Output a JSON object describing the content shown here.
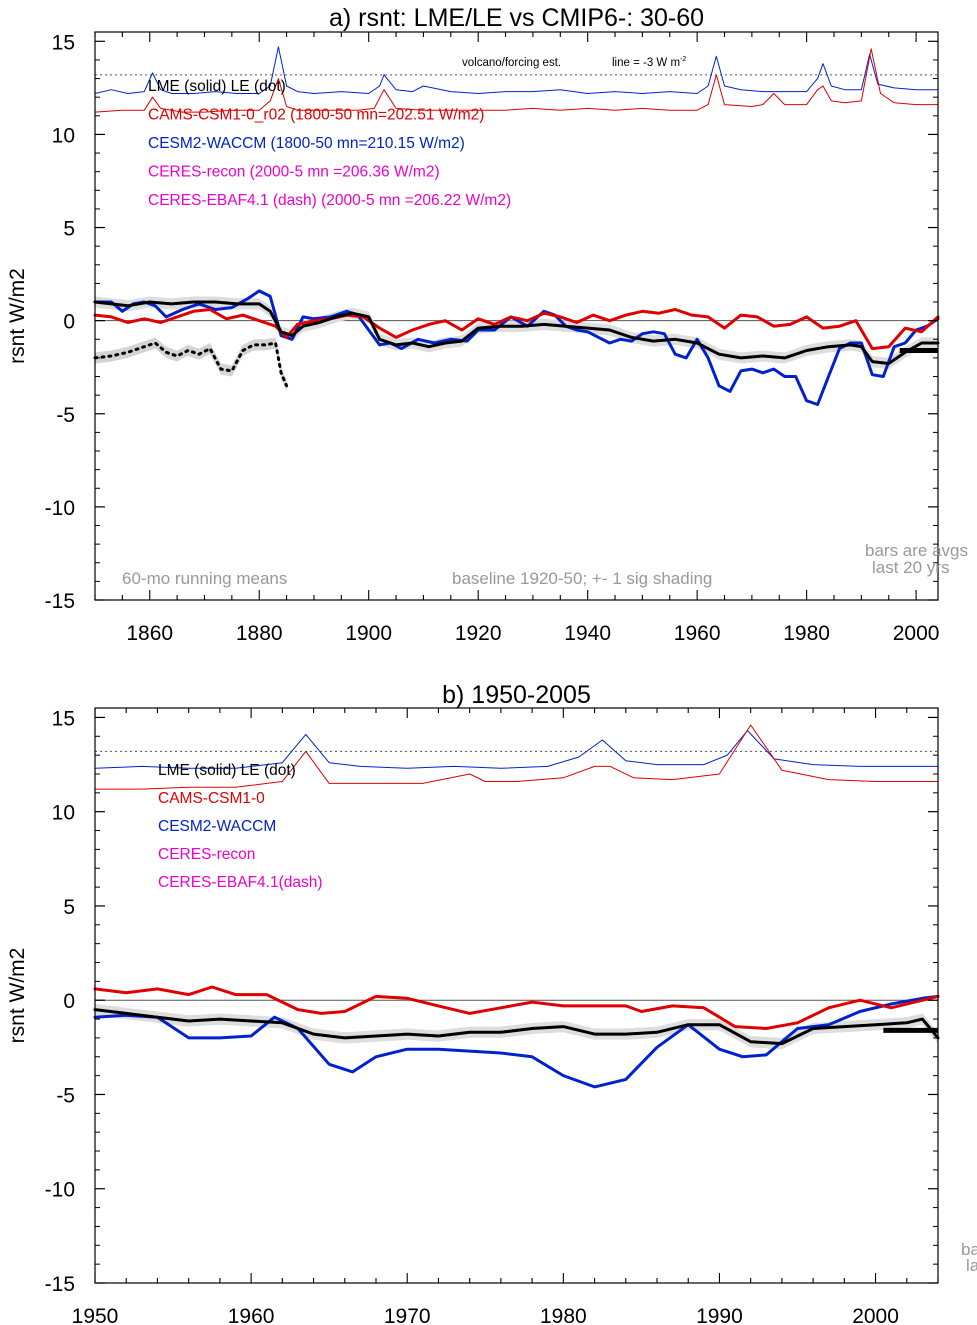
{
  "chart_data": [
    {
      "type": "line",
      "title": "a) rsnt: LME/LE vs CMIP6-: 30-60",
      "ylabel": "rsnt W/m2",
      "xlim": [
        1850,
        2004
      ],
      "ylim": [
        -15,
        15.5
      ],
      "xticks": [
        "1860",
        "1880",
        "1900",
        "1920",
        "1940",
        "1960",
        "1980",
        "2000"
      ],
      "yticks": [
        "15",
        "10",
        "5",
        "0",
        "-5",
        "-10",
        "-15"
      ],
      "grid": false,
      "legend": [
        {
          "text": "LME (solid)   LE (dot)",
          "color": "#000000"
        },
        {
          "text": "CAMS-CSM1-0_r02 (1800-50 mn=202.51 W/m2)",
          "color": "#e00000"
        },
        {
          "text": "CESM2-WACCM (1800-50 mn=210.15 W/m2)",
          "color": "#0022cc"
        },
        {
          "text": "CERES-recon (2000-5 mn =206.36 W/m2)",
          "color": "#ee00cc"
        },
        {
          "text": "CERES-EBAF4.1 (dash) (2000-5 mn =206.22 W/m2)",
          "color": "#ee00cc"
        }
      ],
      "volcano_note": "volcano/forcing est.",
      "line_note": "line = -3 W m",
      "line_note_sup": "-2",
      "note_left": "60-mo running means",
      "note_center": "baseline 1920-50; +- 1 sig shading",
      "note_right_1": "bars are avgs",
      "note_right_2": "last 20 yrs",
      "series": [
        {
          "name": "CESM2-WACCM",
          "color": "#0022cc",
          "x": [
            1850,
            1853,
            1855,
            1857,
            1859,
            1861,
            1863,
            1866,
            1869,
            1872,
            1875,
            1878,
            1880,
            1882,
            1884,
            1886,
            1888,
            1890,
            1893,
            1896,
            1898,
            1900,
            1902,
            1904,
            1906,
            1909,
            1912,
            1915,
            1918,
            1920,
            1923,
            1926,
            1929,
            1932,
            1934,
            1936,
            1938,
            1940,
            1942,
            1944,
            1946,
            1948,
            1950,
            1952,
            1954,
            1956,
            1958,
            1960,
            1962,
            1964,
            1966,
            1968,
            1970,
            1972,
            1974,
            1976,
            1978,
            1980,
            1982,
            1984,
            1986,
            1988,
            1990,
            1992,
            1994,
            1996,
            1998,
            2000,
            2002,
            2004
          ],
          "y": [
            1.0,
            1.0,
            0.5,
            0.9,
            1.0,
            0.8,
            0.2,
            0.6,
            0.9,
            0.6,
            0.7,
            1.2,
            1.6,
            1.3,
            -0.8,
            -1.0,
            0.2,
            0.1,
            0.2,
            0.5,
            0.3,
            -0.5,
            -1.3,
            -1.2,
            -1.5,
            -1.0,
            -1.2,
            -1.0,
            -1.1,
            -0.5,
            -0.5,
            0.2,
            -0.3,
            0.5,
            0.3,
            -0.3,
            -0.5,
            -0.6,
            -0.9,
            -1.2,
            -1.0,
            -1.1,
            -0.7,
            -0.6,
            -0.7,
            -1.8,
            -2.0,
            -1.0,
            -2.0,
            -3.5,
            -3.8,
            -2.7,
            -2.6,
            -2.8,
            -2.6,
            -3.0,
            -3.0,
            -4.3,
            -4.5,
            -3.0,
            -1.5,
            -1.2,
            -1.2,
            -2.9,
            -3.0,
            -1.4,
            -1.2,
            -0.5,
            -0.3,
            0.1
          ]
        },
        {
          "name": "CAMS-CSM1-0",
          "color": "#e00000",
          "x": [
            1850,
            1853,
            1856,
            1859,
            1862,
            1865,
            1868,
            1871,
            1874,
            1877,
            1880,
            1883,
            1885,
            1887,
            1890,
            1893,
            1896,
            1899,
            1902,
            1905,
            1908,
            1911,
            1914,
            1917,
            1920,
            1923,
            1926,
            1929,
            1932,
            1935,
            1938,
            1941,
            1944,
            1947,
            1950,
            1953,
            1956,
            1959,
            1962,
            1965,
            1968,
            1971,
            1974,
            1977,
            1980,
            1983,
            1986,
            1989,
            1992,
            1995,
            1998,
            2001,
            2004
          ],
          "y": [
            0.3,
            0.2,
            -0.1,
            0.1,
            -0.1,
            0.2,
            0.5,
            0.6,
            0.1,
            0.3,
            0.0,
            -0.3,
            -0.9,
            -0.2,
            0.0,
            0.1,
            0.3,
            0.2,
            -0.4,
            -0.9,
            -0.5,
            -0.2,
            0.0,
            -0.5,
            0.1,
            -0.2,
            0.2,
            0.0,
            0.4,
            0.2,
            -0.1,
            0.3,
            0.0,
            0.3,
            0.5,
            0.4,
            0.6,
            0.3,
            0.2,
            -0.4,
            0.3,
            0.2,
            -0.3,
            -0.2,
            0.2,
            -0.4,
            -0.3,
            0.0,
            -1.5,
            -1.4,
            -0.4,
            -0.6,
            0.2
          ]
        },
        {
          "name": "LME",
          "color": "#000000",
          "x": [
            1850,
            1853,
            1856,
            1860,
            1864,
            1868,
            1872,
            1876,
            1880,
            1882,
            1884,
            1886,
            1888,
            1891,
            1894,
            1897,
            1900,
            1902,
            1905,
            1908,
            1911,
            1914,
            1917,
            1920,
            1924,
            1928,
            1932,
            1936,
            1940,
            1944,
            1948,
            1952,
            1956,
            1960,
            1964,
            1968,
            1972,
            1976,
            1980,
            1984,
            1988,
            1990,
            1992,
            1995,
            1998,
            2001,
            2004
          ],
          "y": [
            1.0,
            0.9,
            0.8,
            1.0,
            0.9,
            1.0,
            1.0,
            0.9,
            0.9,
            0.5,
            -0.6,
            -0.8,
            -0.3,
            -0.1,
            0.2,
            0.4,
            0.2,
            -1.0,
            -1.3,
            -1.2,
            -1.4,
            -1.2,
            -1.1,
            -0.4,
            -0.3,
            -0.3,
            -0.2,
            -0.3,
            -0.4,
            -0.5,
            -0.9,
            -1.1,
            -1.0,
            -1.2,
            -1.8,
            -2.0,
            -1.9,
            -2.0,
            -1.6,
            -1.4,
            -1.3,
            -1.4,
            -2.2,
            -2.3,
            -1.7,
            -1.2,
            -1.2
          ]
        },
        {
          "name": "LE",
          "color": "#000000",
          "dash": true,
          "x": [
            1850,
            1853,
            1856,
            1859,
            1861,
            1863,
            1865,
            1867,
            1869,
            1871,
            1873,
            1875,
            1877,
            1879,
            1881,
            1883,
            1884,
            1885
          ],
          "y": [
            -2.0,
            -1.9,
            -1.7,
            -1.4,
            -1.2,
            -1.7,
            -1.9,
            -1.6,
            -1.8,
            -1.5,
            -2.6,
            -2.7,
            -1.6,
            -1.3,
            -1.3,
            -1.2,
            -2.8,
            -3.5
          ]
        },
        {
          "name": "CESM2-WACCM forcing",
          "color": "#0022cc",
          "thin": true,
          "x": [
            1850,
            1853,
            1856,
            1859,
            1860.5,
            1862,
            1864,
            1868,
            1872,
            1876,
            1880,
            1882,
            1883.5,
            1885,
            1887,
            1890,
            1895,
            1900,
            1902,
            1902.8,
            1905,
            1908,
            1910,
            1915,
            1920,
            1925,
            1930,
            1935,
            1940,
            1945,
            1950,
            1955,
            1960,
            1962,
            1963.5,
            1965,
            1968,
            1972,
            1976,
            1980,
            1982,
            1983,
            1984.5,
            1987,
            1990,
            1991.5,
            1993,
            1996,
            2000,
            2004
          ],
          "y": [
            12.2,
            12.4,
            12.2,
            12.3,
            13.3,
            12.4,
            12.2,
            12.2,
            12.3,
            12.2,
            12.2,
            12.6,
            14.7,
            12.6,
            12.3,
            12.2,
            12.3,
            12.2,
            12.6,
            13.2,
            12.4,
            12.3,
            12.6,
            12.3,
            12.2,
            12.3,
            12.3,
            12.4,
            12.2,
            12.3,
            12.2,
            12.3,
            12.2,
            12.6,
            14.2,
            12.6,
            12.4,
            12.3,
            12.3,
            12.3,
            13.0,
            13.8,
            12.6,
            12.4,
            12.4,
            14.3,
            12.7,
            12.5,
            12.4,
            12.4
          ]
        },
        {
          "name": "CAMS-CSM1-0 forcing",
          "color": "#e00000",
          "thin": true,
          "x": [
            1850,
            1855,
            1859,
            1860.5,
            1862,
            1866,
            1870,
            1875,
            1880,
            1882,
            1883.5,
            1885,
            1887,
            1892,
            1898,
            1901,
            1902.8,
            1905,
            1910,
            1915,
            1920,
            1925,
            1930,
            1935,
            1940,
            1945,
            1950,
            1955,
            1960,
            1962,
            1963.5,
            1965,
            1970,
            1972,
            1974,
            1976,
            1980,
            1982,
            1983,
            1984.5,
            1987,
            1990,
            1991.8,
            1993.5,
            1996,
            2000,
            2004
          ],
          "y": [
            11.2,
            11.3,
            11.3,
            12.0,
            11.4,
            11.2,
            11.2,
            11.3,
            11.3,
            11.8,
            13.0,
            11.5,
            11.3,
            11.3,
            11.3,
            11.4,
            12.4,
            11.4,
            11.3,
            11.3,
            11.3,
            11.3,
            11.4,
            11.3,
            11.4,
            11.3,
            11.4,
            11.3,
            11.3,
            11.6,
            13.2,
            11.6,
            11.5,
            11.6,
            12.2,
            11.6,
            11.6,
            12.4,
            12.6,
            11.8,
            11.7,
            11.8,
            14.6,
            12.2,
            11.7,
            11.6,
            11.6
          ]
        }
      ]
    },
    {
      "type": "line",
      "title": "b) 1950-2005",
      "ylabel": "rsnt W/m2",
      "xlim": [
        1950,
        2004
      ],
      "ylim": [
        -15,
        15.5
      ],
      "xticks": [
        "1950",
        "1960",
        "1970",
        "1980",
        "1990",
        "2000"
      ],
      "yticks": [
        "15",
        "10",
        "5",
        "0",
        "-5",
        "-10",
        "-15"
      ],
      "grid": false,
      "legend": [
        {
          "text": "LME (solid)      LE (dot)",
          "color": "#000000"
        },
        {
          "text": "CAMS-CSM1-0",
          "color": "#e00000"
        },
        {
          "text": "CESM2-WACCM",
          "color": "#0022cc"
        },
        {
          "text": "CERES-recon",
          "color": "#ee00cc"
        },
        {
          "text": "CERES-EBAF4.1(dash)",
          "color": "#ee00cc"
        }
      ],
      "note_right_1": "ba",
      "note_right_2": "la",
      "series": [
        {
          "name": "CESM2-WACCM",
          "color": "#0022cc",
          "x": [
            1950,
            1952,
            1954,
            1956,
            1958,
            1960,
            1961.5,
            1963,
            1965,
            1966.5,
            1968,
            1970,
            1972,
            1974,
            1976,
            1978,
            1980,
            1982,
            1984,
            1986,
            1988,
            1990,
            1991.5,
            1993,
            1995,
            1997,
            1999,
            2001,
            2003,
            2004
          ],
          "y": [
            -0.9,
            -0.8,
            -0.9,
            -2.0,
            -2.0,
            -1.9,
            -0.9,
            -1.5,
            -3.4,
            -3.8,
            -3.0,
            -2.6,
            -2.6,
            -2.7,
            -2.8,
            -3.0,
            -4.0,
            -4.6,
            -4.2,
            -2.5,
            -1.3,
            -2.6,
            -3.0,
            -2.9,
            -1.5,
            -1.3,
            -0.6,
            -0.2,
            0.1,
            0.2
          ]
        },
        {
          "name": "CAMS-CSM1-0",
          "color": "#e00000",
          "x": [
            1950,
            1952,
            1954,
            1956,
            1957.5,
            1959,
            1961,
            1963,
            1964.5,
            1966,
            1968,
            1970,
            1972,
            1974,
            1976,
            1978,
            1980,
            1982,
            1984,
            1985,
            1987,
            1989,
            1991,
            1993,
            1995,
            1997,
            1999,
            2001,
            2004
          ],
          "y": [
            0.6,
            0.4,
            0.6,
            0.3,
            0.7,
            0.3,
            0.3,
            -0.5,
            -0.7,
            -0.6,
            0.2,
            0.1,
            -0.3,
            -0.7,
            -0.4,
            -0.1,
            -0.3,
            -0.3,
            -0.3,
            -0.6,
            -0.3,
            -0.4,
            -1.4,
            -1.5,
            -1.2,
            -0.4,
            0.0,
            -0.4,
            0.2
          ]
        },
        {
          "name": "LME",
          "color": "#000000",
          "x": [
            1950,
            1952,
            1954,
            1956,
            1958,
            1960,
            1962,
            1964,
            1966,
            1968,
            1970,
            1972,
            1974,
            1976,
            1978,
            1980,
            1982,
            1984,
            1986,
            1988,
            1990,
            1992,
            1994,
            1996,
            1998,
            2000,
            2002,
            2003,
            2004
          ],
          "y": [
            -0.5,
            -0.7,
            -0.9,
            -1.1,
            -1.0,
            -1.1,
            -1.2,
            -1.8,
            -2.0,
            -1.9,
            -1.8,
            -1.9,
            -1.7,
            -1.7,
            -1.5,
            -1.4,
            -1.8,
            -1.8,
            -1.7,
            -1.3,
            -1.3,
            -2.2,
            -2.3,
            -1.5,
            -1.4,
            -1.3,
            -1.2,
            -1.0,
            -2.0
          ]
        },
        {
          "name": "CESM2-WACCM forcing",
          "color": "#0022cc",
          "thin": true,
          "x": [
            1950,
            1953,
            1956,
            1959,
            1962,
            1963.5,
            1965,
            1967,
            1970,
            1973,
            1976,
            1979,
            1981,
            1982.5,
            1984,
            1986,
            1989,
            1990.5,
            1991.8,
            1993.5,
            1996,
            1999,
            2002,
            2004
          ],
          "y": [
            12.3,
            12.4,
            12.3,
            12.3,
            12.6,
            14.1,
            12.6,
            12.4,
            12.3,
            12.4,
            12.3,
            12.4,
            12.9,
            13.8,
            12.7,
            12.5,
            12.5,
            13.0,
            14.3,
            12.8,
            12.5,
            12.4,
            12.4,
            12.4
          ]
        },
        {
          "name": "CAMS-CSM1-0 forcing",
          "color": "#e00000",
          "thin": true,
          "x": [
            1950,
            1953,
            1956,
            1959,
            1962,
            1963.5,
            1965,
            1968,
            1971,
            1974,
            1975,
            1977,
            1980,
            1982,
            1983,
            1984.5,
            1987,
            1990,
            1992,
            1994,
            1997,
            2000,
            2004
          ],
          "y": [
            11.2,
            11.2,
            11.3,
            11.3,
            11.6,
            13.2,
            11.5,
            11.5,
            11.5,
            12.0,
            11.6,
            11.6,
            11.8,
            12.4,
            12.4,
            11.8,
            11.7,
            12.0,
            14.6,
            12.2,
            11.7,
            11.6,
            11.6
          ]
        }
      ]
    }
  ]
}
